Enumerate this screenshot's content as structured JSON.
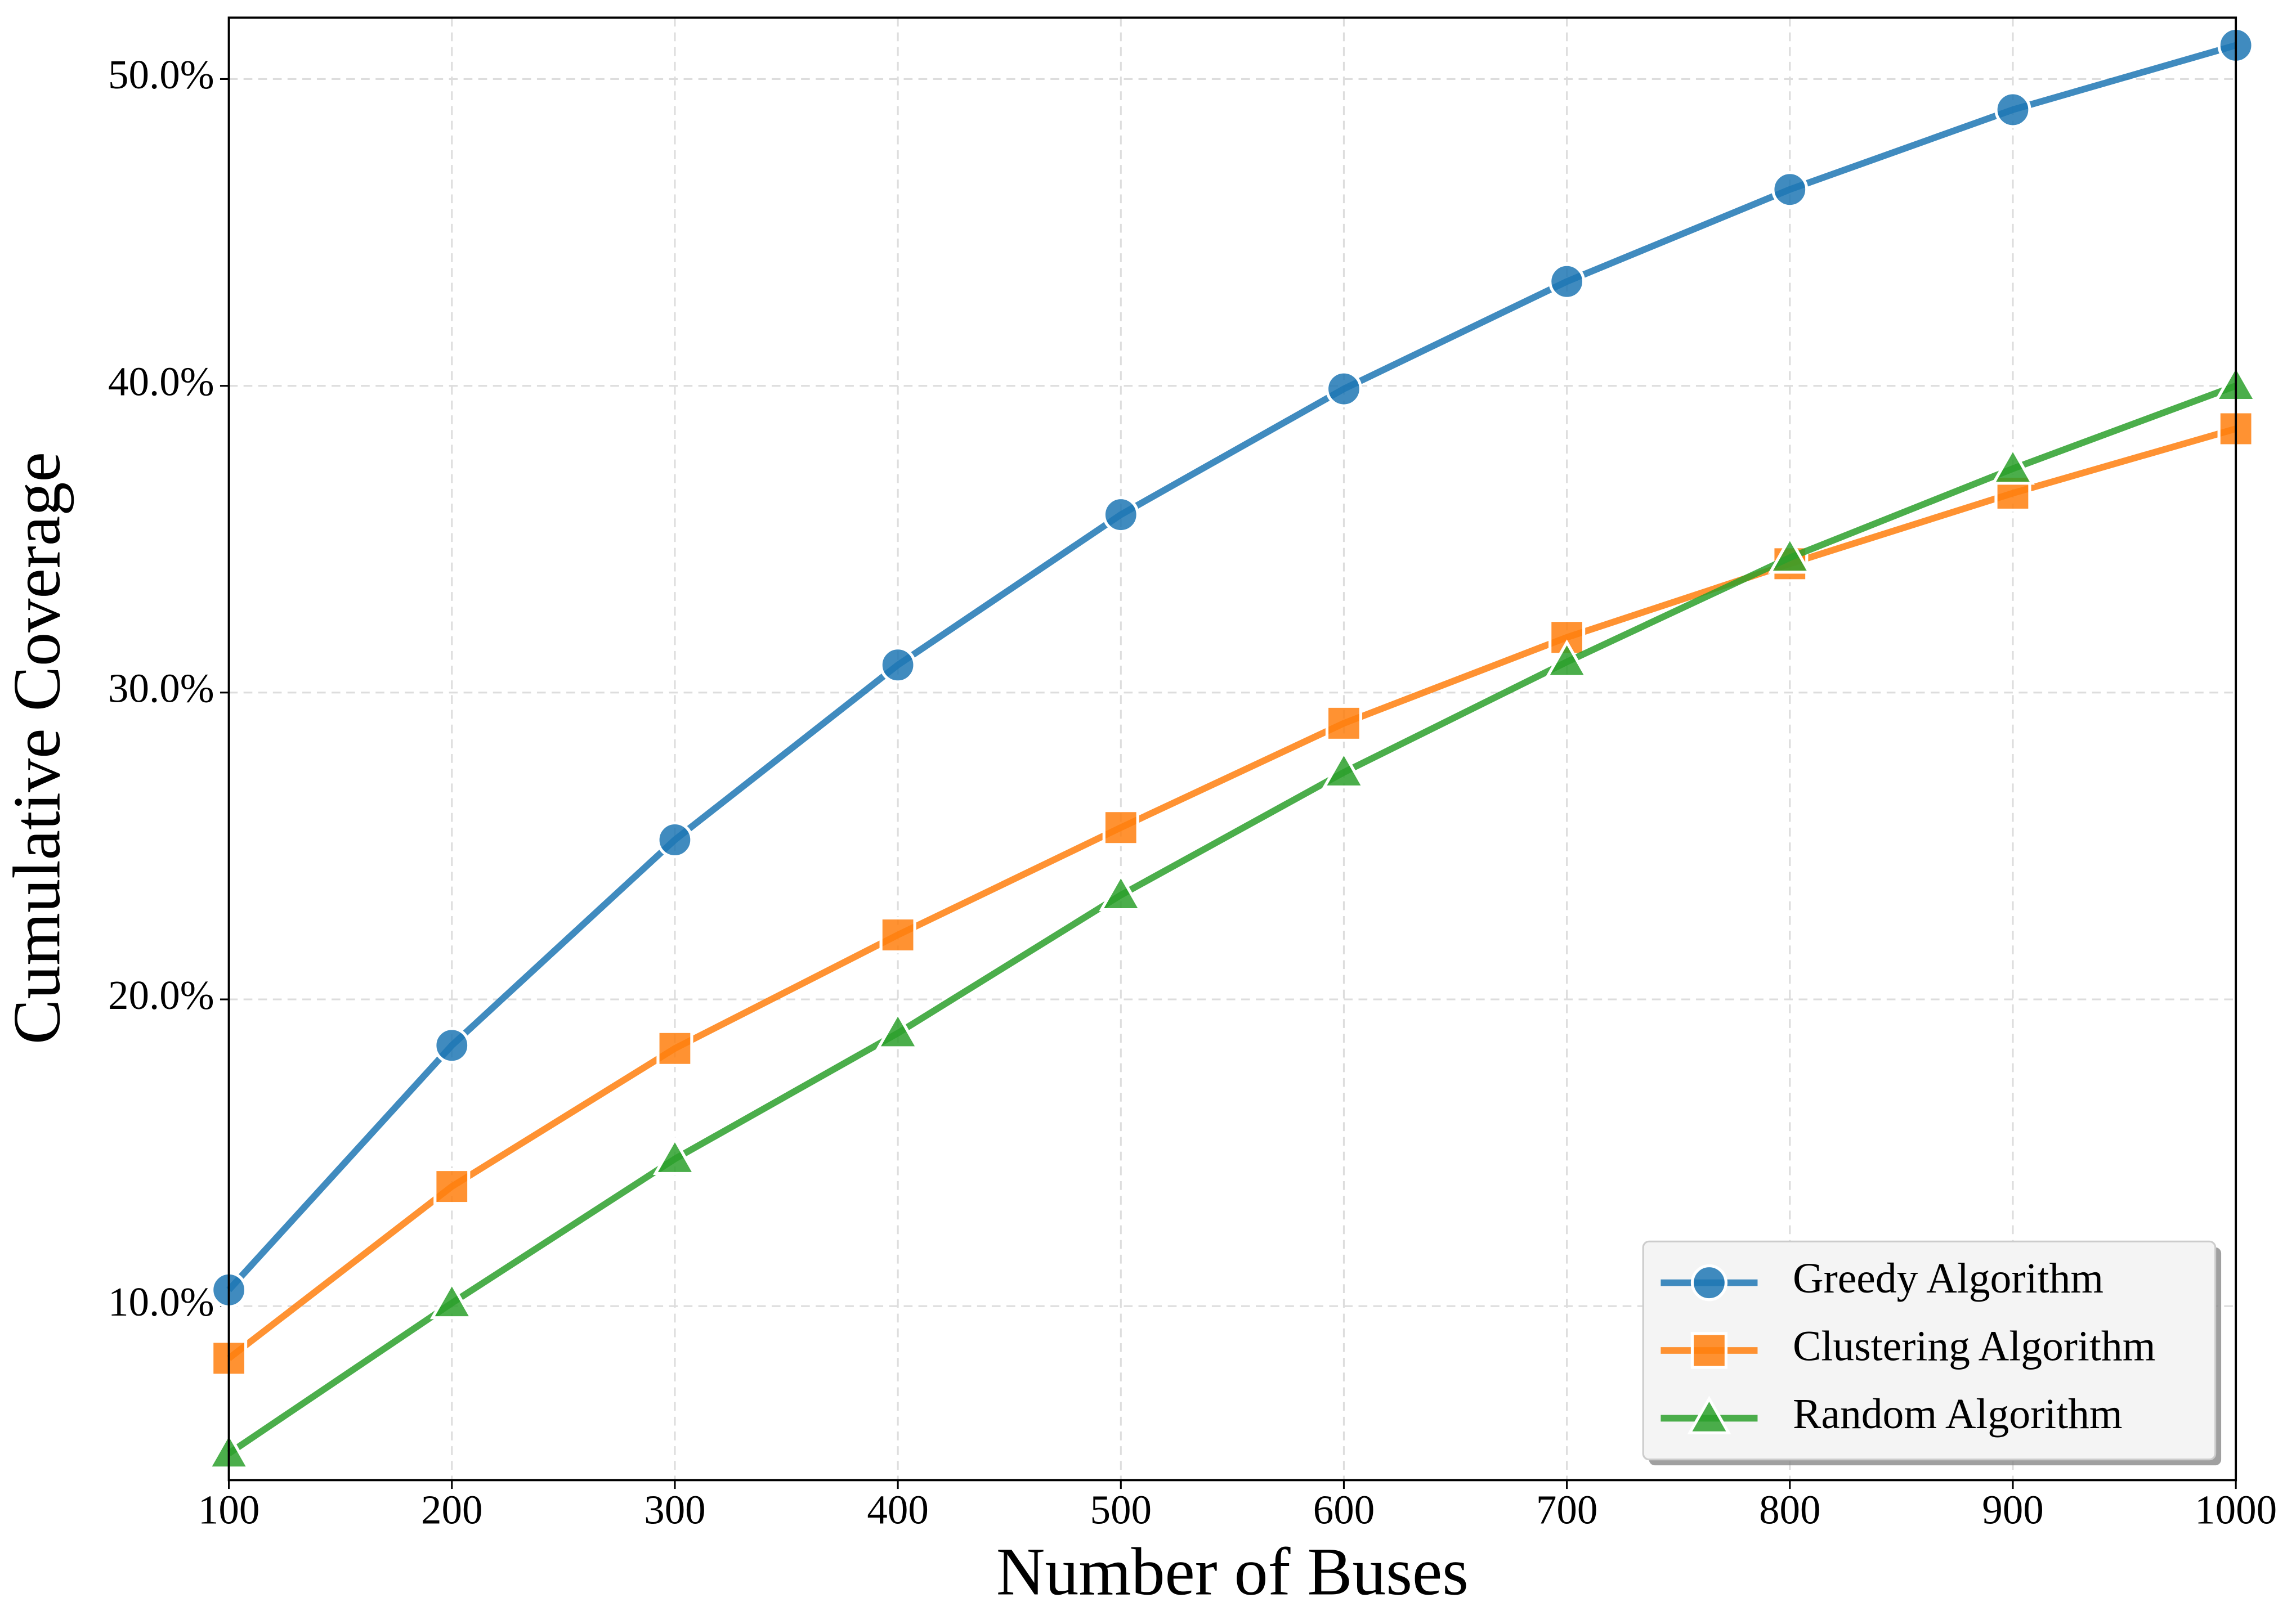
{
  "chart_data": {
    "type": "line",
    "xlabel": "Number of Buses",
    "ylabel": "Cumulative Coverage",
    "x": [
      100,
      200,
      300,
      400,
      500,
      600,
      700,
      800,
      900,
      1000
    ],
    "series": [
      {
        "name": "Greedy Algorithm",
        "color": "#1f77b4",
        "marker": "circle",
        "values": [
          10.53,
          18.5,
          25.2,
          30.9,
          35.8,
          39.9,
          43.4,
          46.4,
          49.0,
          51.1
        ]
      },
      {
        "name": "Clustering Algorithm",
        "color": "#ff7f0e",
        "marker": "square",
        "values": [
          8.3,
          13.9,
          18.4,
          22.1,
          25.6,
          29.0,
          31.8,
          34.2,
          36.5,
          38.6
        ]
      },
      {
        "name": "Random Algorithm",
        "color": "#2ca02c",
        "marker": "triangle",
        "values": [
          5.2,
          10.1,
          14.8,
          18.9,
          23.4,
          27.4,
          31.0,
          34.4,
          37.3,
          40.0
        ]
      }
    ],
    "xlim": [
      100,
      1000
    ],
    "ylim": [
      4.33,
      52.0
    ],
    "xticks": [
      100,
      200,
      300,
      400,
      500,
      600,
      700,
      800,
      900,
      1000
    ],
    "yticks": [
      {
        "value": 10,
        "label": "10.0%"
      },
      {
        "value": 20,
        "label": "20.0%"
      },
      {
        "value": 30,
        "label": "30.0%"
      },
      {
        "value": 40,
        "label": "40.0%"
      },
      {
        "value": 50,
        "label": "50.0%"
      }
    ],
    "grid": true,
    "legend": "lower right"
  }
}
